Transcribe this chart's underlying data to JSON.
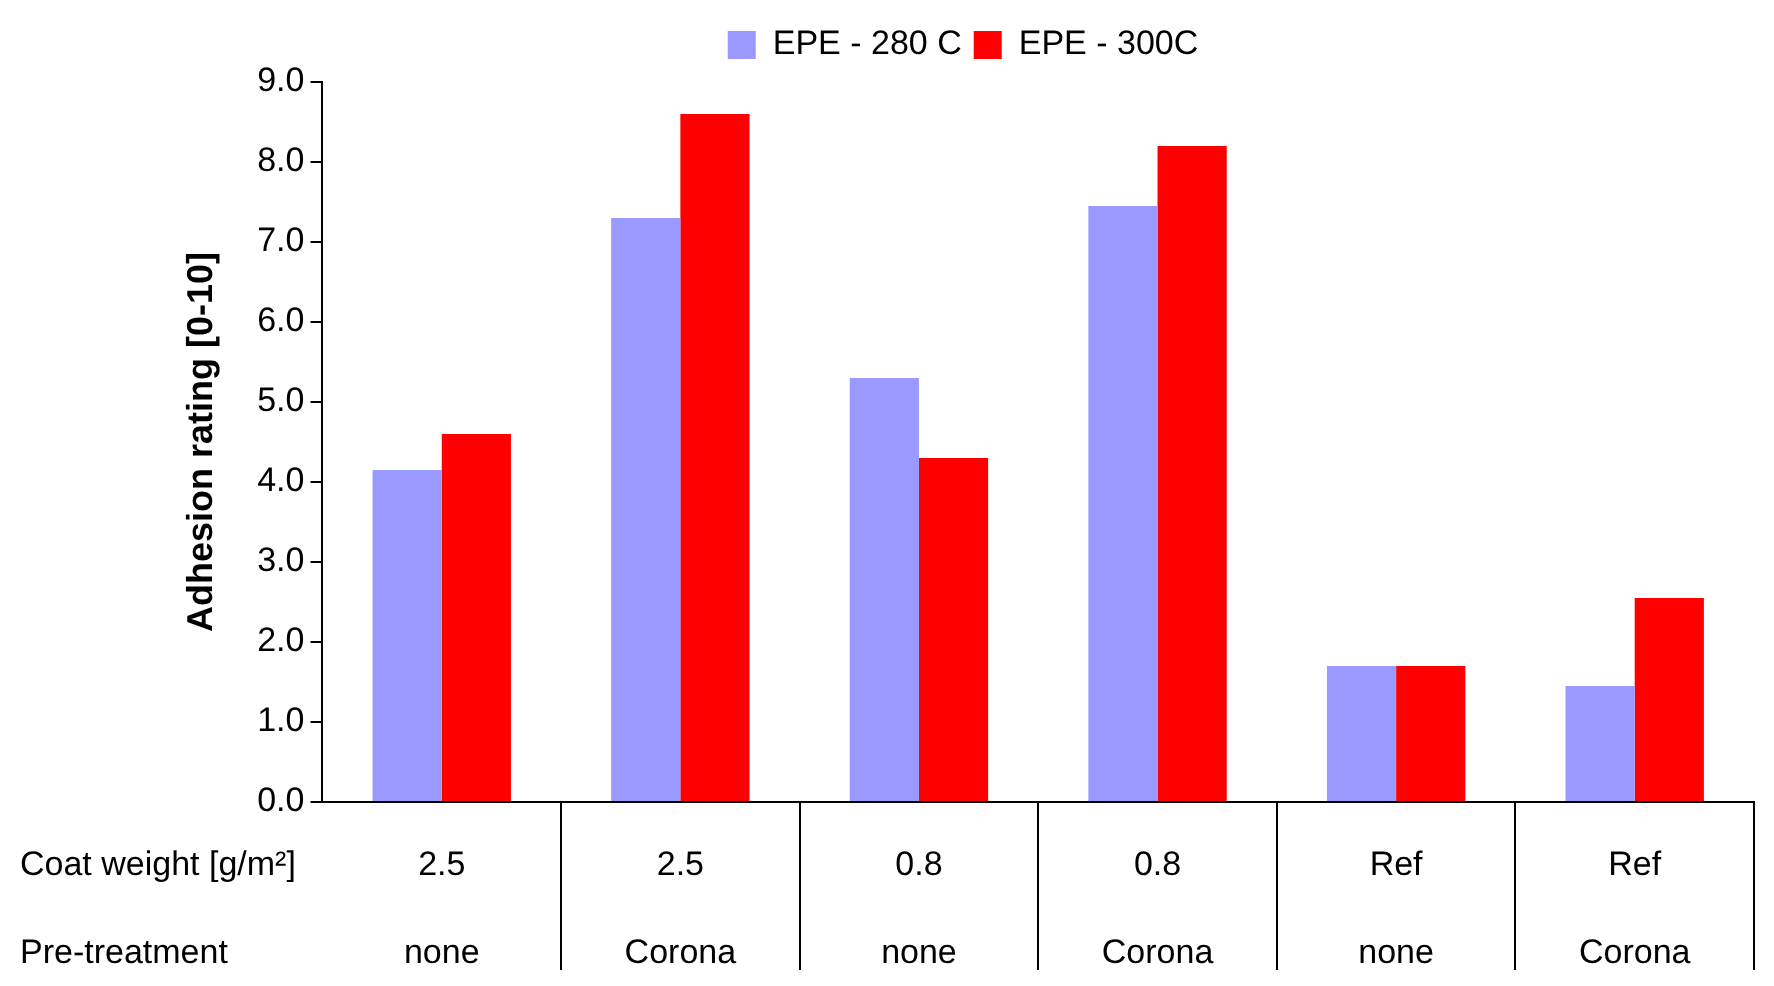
{
  "chart_data": {
    "type": "bar",
    "ylabel": "Adhesion rating [0-10]",
    "categories": [
      "2.5\nnone",
      "2.5\nCorona",
      "0.8\nnone",
      "0.8\nCorona",
      "Ref\nnone",
      "Ref\nCorona"
    ],
    "series": [
      {
        "name": "EPE - 280 C",
        "color": "#9999ff",
        "values": [
          4.15,
          7.3,
          5.3,
          7.45,
          1.7,
          1.45
        ]
      },
      {
        "name": "EPE - 300C",
        "color": "#ff0000",
        "values": [
          4.6,
          8.6,
          4.3,
          8.2,
          1.7,
          2.55
        ]
      }
    ],
    "ylim": [
      0,
      9
    ],
    "yticks": [
      {
        "value": 0,
        "label": "0.0"
      },
      {
        "value": 1,
        "label": "1.0"
      },
      {
        "value": 2,
        "label": "2.0"
      },
      {
        "value": 3,
        "label": "3.0"
      },
      {
        "value": 4,
        "label": "4.0"
      },
      {
        "value": 5,
        "label": "5.0"
      },
      {
        "value": 6,
        "label": "6.0"
      },
      {
        "value": 7,
        "label": "7.0"
      },
      {
        "value": 8,
        "label": "8.0"
      },
      {
        "value": 9,
        "label": "9.0"
      }
    ],
    "annotations": [
      "Coat weight [g/m²]",
      "Pre-treatment"
    ],
    "legend": "top"
  }
}
